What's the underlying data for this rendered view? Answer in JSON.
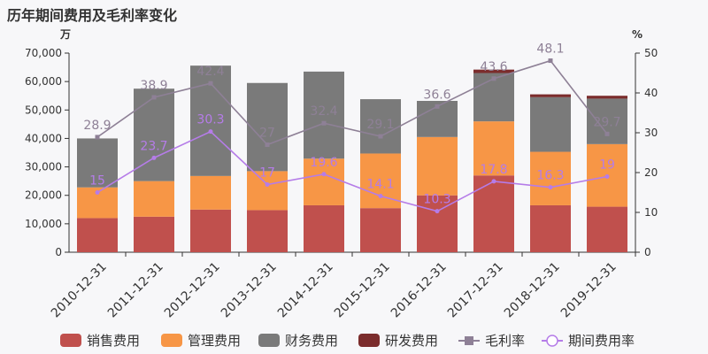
{
  "chart_data": {
    "type": "bar",
    "title": "历年期间费用及毛利率变化",
    "left_unit": "万",
    "right_unit": "%",
    "categories": [
      "2010-12-31",
      "2011-12-31",
      "2012-12-31",
      "2013-12-31",
      "2014-12-31",
      "2015-12-31",
      "2016-12-31",
      "2017-12-31",
      "2018-12-31",
      "2019-12-31"
    ],
    "y_left": {
      "min": 0,
      "max": 70000,
      "ticks": [
        "0",
        "10,000",
        "20,000",
        "30,000",
        "40,000",
        "50,000",
        "60,000",
        "70,000"
      ]
    },
    "y_right": {
      "min": 0,
      "max": 50,
      "ticks": [
        "0",
        "10",
        "20",
        "30",
        "40",
        "50"
      ]
    },
    "series": [
      {
        "name": "销售费用",
        "kind": "bar",
        "color": "#c0504d",
        "values": [
          12000,
          12500,
          15000,
          14800,
          16500,
          15500,
          20000,
          27000,
          16500,
          16000
        ]
      },
      {
        "name": "管理费用",
        "kind": "bar",
        "color": "#f79646",
        "values": [
          10800,
          12500,
          11800,
          13700,
          16400,
          19200,
          20500,
          19000,
          18800,
          22000
        ]
      },
      {
        "name": "财务费用",
        "kind": "bar",
        "color": "#7a7a7a",
        "values": [
          17200,
          32500,
          38800,
          31000,
          30600,
          19100,
          12700,
          17000,
          19200,
          16000
        ]
      },
      {
        "name": "研发费用",
        "kind": "bar",
        "color": "#7b2c2c",
        "values": [
          0,
          0,
          0,
          0,
          0,
          0,
          0,
          1200,
          1000,
          1000
        ]
      },
      {
        "name": "毛利率",
        "kind": "line",
        "color": "#8e8096",
        "marker": "square",
        "values": [
          28.9,
          38.9,
          42.4,
          27,
          32.4,
          29.1,
          36.6,
          43.6,
          48.1,
          29.7
        ]
      },
      {
        "name": "期间费用率",
        "kind": "line",
        "color": "#b57ce8",
        "marker": "circle",
        "values": [
          15,
          23.7,
          30.3,
          17,
          19.6,
          14.1,
          10.3,
          17.8,
          16.3,
          19
        ]
      }
    ],
    "data_labels": {
      "毛利率": [
        "28.9",
        "38.9",
        "42.4",
        "27",
        "32.4",
        "29.1",
        "36.6",
        "43.6",
        "48.1",
        "29.7"
      ],
      "期间费用率": [
        "15",
        "23.7",
        "30.3",
        "17",
        "19.6",
        "14.1",
        "10.3",
        "17.8",
        "16.3",
        "19"
      ]
    },
    "legend_position": "bottom",
    "grid": false
  }
}
